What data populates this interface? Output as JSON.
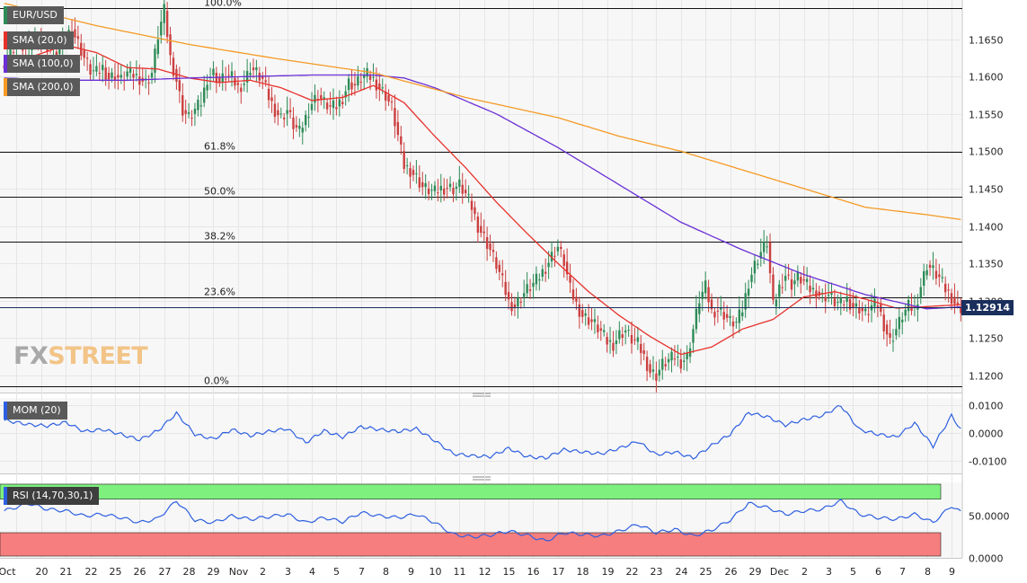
{
  "legend": {
    "symbol": "EUR/USD",
    "sma20": "SMA (20,0)",
    "sma100": "SMA (100,0)",
    "sma200": "SMA (200,0)",
    "mom": "MOM (20)",
    "rsi": "RSI (14,70,30,1)"
  },
  "logo": {
    "part1": "FX",
    "part2": "STREET"
  },
  "last_price": "1.12914",
  "colors": {
    "up": "#2e8b57",
    "down": "#cc3f3f",
    "sma20": "#e8302b",
    "sma100": "#6a2fd6",
    "sma200": "#f59a23",
    "indicator": "#2d5fe0",
    "rsi_over": "#7ef07e",
    "rsi_under": "#f77e7e",
    "last_box": "#1b2f5d"
  },
  "chart_data": [
    {
      "type": "candlestick",
      "title": "EUR/USD",
      "y_ticks": [
        "1.1200",
        "1.1250",
        "1.1300",
        "1.1350",
        "1.1400",
        "1.1450",
        "1.1500",
        "1.1550",
        "1.1600",
        "1.1650"
      ],
      "ylim": [
        1.1177,
        1.17
      ],
      "x_ticks": [
        "Oct",
        "20",
        "21",
        "22",
        "25",
        "26",
        "27",
        "28",
        "29",
        "Nov",
        "2",
        "3",
        "4",
        "5",
        "7",
        "8",
        "9",
        "10",
        "11",
        "12",
        "15",
        "16",
        "17",
        "18",
        "19",
        "22",
        "23",
        "24",
        "25",
        "26",
        "29",
        "Dec",
        "2",
        "3",
        "5",
        "6",
        "7",
        "8",
        "9"
      ],
      "fibonacci": [
        {
          "label": "100.0%",
          "value": 1.1692
        },
        {
          "label": "61.8%",
          "value": 1.1499
        },
        {
          "label": "50.0%",
          "value": 1.1439
        },
        {
          "label": "38.2%",
          "value": 1.1379
        },
        {
          "label": "23.6%",
          "value": 1.1305
        },
        {
          "label": "0.0%",
          "value": 1.1185
        }
      ],
      "last_value": 1.12914,
      "series_keypoints": [
        {
          "name": "Price",
          "x": [
            0,
            4,
            8,
            11,
            14,
            17,
            20,
            22,
            24,
            26,
            28,
            30,
            32,
            34,
            36,
            38,
            40,
            42,
            44,
            46,
            48,
            50,
            52,
            54,
            56,
            58,
            60,
            62,
            64,
            66,
            68,
            70,
            72,
            74,
            76,
            78,
            80,
            82,
            84,
            86,
            88,
            90,
            92,
            94,
            96,
            98,
            100,
            102,
            104,
            106,
            108,
            110,
            112,
            114,
            116,
            118,
            120,
            122,
            124,
            126,
            128,
            130,
            132,
            134,
            136,
            138,
            140,
            142,
            144,
            146,
            148,
            150,
            152,
            154,
            156,
            158,
            160,
            162,
            164,
            166,
            168,
            170,
            172,
            174,
            176,
            178,
            180,
            182,
            184,
            186,
            188,
            190,
            192,
            194,
            196,
            198,
            200,
            202,
            204,
            206,
            208,
            210,
            212,
            214,
            216,
            218,
            220,
            222,
            224,
            226,
            228,
            230,
            232,
            234,
            236,
            238,
            240,
            242,
            244,
            246,
            248,
            250,
            252,
            254,
            256,
            258,
            260,
            262,
            264,
            266,
            268,
            270,
            272,
            274,
            276,
            278,
            280,
            282,
            284,
            286,
            288,
            290,
            292,
            294,
            296,
            298,
            300,
            302,
            304,
            306,
            308,
            310,
            312
          ],
          "y": [
            1.162,
            1.1645,
            1.1635,
            1.1655,
            1.164,
            1.163,
            1.1655,
            1.1663,
            1.1645,
            1.1625,
            1.1608,
            1.1605,
            1.1612,
            1.1598,
            1.1602,
            1.1595,
            1.1605,
            1.1602,
            1.1598,
            1.1592,
            1.1605,
            1.1655,
            1.1688,
            1.1625,
            1.1595,
            1.1555,
            1.1545,
            1.1555,
            1.1565,
            1.1598,
            1.1605,
            1.1592,
            1.1602,
            1.1598,
            1.1585,
            1.1592,
            1.1612,
            1.1605,
            1.1595,
            1.1572,
            1.1555,
            1.1545,
            1.1555,
            1.1535,
            1.1525,
            1.1545,
            1.1565,
            1.1575,
            1.1565,
            1.1558,
            1.156,
            1.1572,
            1.1592,
            1.1588,
            1.1598,
            1.1602,
            1.1596,
            1.1585,
            1.1575,
            1.1558,
            1.152,
            1.148,
            1.1475,
            1.1465,
            1.1452,
            1.1448,
            1.1445,
            1.145,
            1.1452,
            1.145,
            1.1455,
            1.1442,
            1.1425,
            1.14,
            1.1385,
            1.1368,
            1.1348,
            1.1325,
            1.1298,
            1.1292,
            1.1305,
            1.1315,
            1.1322,
            1.1332,
            1.1345,
            1.136,
            1.1372,
            1.1352,
            1.1315,
            1.1295,
            1.128,
            1.1275,
            1.1268,
            1.1258,
            1.1245,
            1.1242,
            1.1255,
            1.126,
            1.1248,
            1.1242,
            1.1225,
            1.1205,
            1.12,
            1.1215,
            1.122,
            1.1225,
            1.1218,
            1.1225,
            1.1262,
            1.1302,
            1.1318,
            1.1285,
            1.1288,
            1.1282,
            1.1272,
            1.127,
            1.1288,
            1.1325,
            1.1348,
            1.1365,
            1.1378,
            1.1292,
            1.1318,
            1.1335,
            1.1322,
            1.1332,
            1.1325,
            1.1315,
            1.1312,
            1.1305,
            1.1308,
            1.1298,
            1.1295,
            1.1302,
            1.1292,
            1.129,
            1.1282,
            1.1292,
            1.1295,
            1.1268,
            1.1245,
            1.1262,
            1.128,
            1.1292,
            1.1288,
            1.132,
            1.1348,
            1.134,
            1.133,
            1.1315,
            1.1305,
            1.129,
            1.1291
          ]
        },
        {
          "name": "SMA (20,0)",
          "x": [
            0,
            10,
            20,
            30,
            40,
            50,
            60,
            70,
            80,
            90,
            100,
            110,
            120,
            130,
            140,
            150,
            160,
            170,
            180,
            190,
            200,
            210,
            220,
            230,
            240,
            250,
            260,
            270,
            280,
            290,
            300,
            312
          ],
          "y": [
            1.1608,
            1.1628,
            1.1642,
            1.1632,
            1.1612,
            1.161,
            1.1598,
            1.1592,
            1.1595,
            1.1585,
            1.1568,
            1.1572,
            1.1588,
            1.1565,
            1.152,
            1.1478,
            1.1432,
            1.139,
            1.135,
            1.1312,
            1.128,
            1.1252,
            1.1228,
            1.1238,
            1.1262,
            1.1275,
            1.1305,
            1.1312,
            1.1302,
            1.129,
            1.1292,
            1.1295
          ]
        },
        {
          "name": "SMA (100,0)",
          "x": [
            0,
            20,
            40,
            60,
            80,
            100,
            120,
            130,
            140,
            160,
            180,
            200,
            220,
            240,
            260,
            280,
            300,
            312
          ],
          "y": [
            1.1598,
            1.1595,
            1.1595,
            1.1598,
            1.16,
            1.1602,
            1.1602,
            1.1598,
            1.1585,
            1.155,
            1.1505,
            1.1455,
            1.1405,
            1.1368,
            1.1335,
            1.1308,
            1.1289,
            1.1292
          ]
        },
        {
          "name": "SMA (200,0)",
          "x": [
            0,
            30,
            60,
            90,
            120,
            150,
            180,
            200,
            220,
            240,
            260,
            280,
            300,
            312
          ],
          "y": [
            1.1698,
            1.1668,
            1.1643,
            1.1623,
            1.1605,
            1.1572,
            1.1545,
            1.152,
            1.15,
            1.1475,
            1.145,
            1.1425,
            1.1415,
            1.1408
          ]
        }
      ]
    },
    {
      "type": "line",
      "title": "MOM (20)",
      "y_ticks": [
        "0.0100",
        "0.0000",
        "-0.0100"
      ],
      "ylim": [
        -0.0145,
        0.0125
      ],
      "series": [
        {
          "x": [
            0,
            8,
            14,
            20,
            26,
            32,
            38,
            44,
            50,
            56,
            62,
            68,
            74,
            80,
            86,
            92,
            98,
            104,
            110,
            116,
            122,
            128,
            134,
            140,
            146,
            152,
            158,
            164,
            170,
            176,
            182,
            188,
            194,
            200,
            206,
            212,
            218,
            224,
            230,
            236,
            242,
            248,
            254,
            260,
            266,
            272,
            278,
            284,
            290,
            296,
            302,
            308,
            312
          ],
          "y": [
            0.0045,
            0.003,
            0.0025,
            0.0038,
            0.0005,
            0.0012,
            -0.0005,
            -0.0025,
            0.0008,
            0.007,
            -0.0005,
            -0.0022,
            0.0012,
            -0.001,
            0.0005,
            0.0015,
            -0.0035,
            0.0008,
            -0.0015,
            0.0022,
            0.0012,
            0.0005,
            0.0015,
            -0.0028,
            -0.0075,
            -0.0082,
            -0.0085,
            -0.0055,
            -0.0085,
            -0.009,
            -0.006,
            -0.0068,
            -0.0075,
            -0.0055,
            -0.003,
            -0.0078,
            -0.0068,
            -0.009,
            -0.0045,
            -0.0005,
            0.0072,
            0.0058,
            0.0028,
            0.0048,
            0.0062,
            0.0098,
            0.0012,
            -0.0005,
            -0.0015,
            0.0035,
            -0.0048,
            0.0062,
            -0.0005
          ]
        }
      ]
    },
    {
      "type": "line",
      "title": "RSI (14,70,30,1)",
      "y_ticks": [
        "50.0000",
        "0.0000"
      ],
      "ylim": [
        0,
        90
      ],
      "overbought": 70,
      "oversold": 30,
      "series": [
        {
          "x": [
            0,
            8,
            14,
            20,
            26,
            32,
            38,
            44,
            50,
            56,
            62,
            68,
            74,
            80,
            86,
            92,
            98,
            104,
            110,
            116,
            122,
            128,
            134,
            140,
            146,
            152,
            158,
            164,
            170,
            176,
            182,
            188,
            194,
            200,
            206,
            212,
            218,
            224,
            230,
            236,
            242,
            248,
            254,
            260,
            266,
            272,
            278,
            284,
            290,
            296,
            302,
            308,
            312
          ],
          "y": [
            56,
            65,
            58,
            56,
            50,
            52,
            48,
            42,
            47,
            68,
            45,
            42,
            50,
            46,
            49,
            52,
            42,
            48,
            43,
            54,
            50,
            48,
            52,
            42,
            28,
            25,
            27,
            32,
            27,
            20,
            30,
            28,
            26,
            32,
            40,
            30,
            34,
            26,
            33,
            45,
            65,
            60,
            52,
            56,
            58,
            68,
            52,
            48,
            46,
            52,
            42,
            62,
            52
          ]
        }
      ]
    }
  ]
}
